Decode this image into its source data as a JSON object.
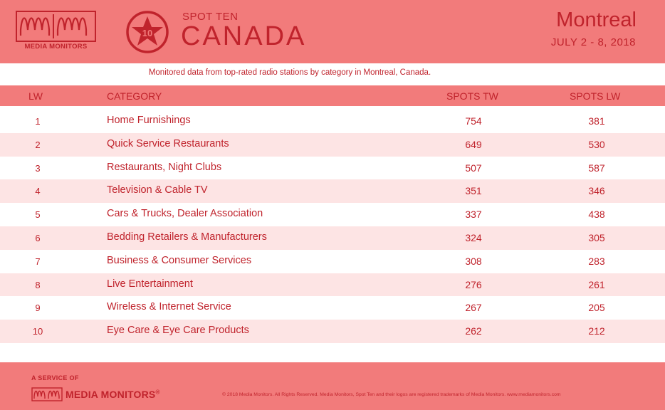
{
  "brand": {
    "logo_text": "MEDIA MONITORS",
    "accent": "#c0232c",
    "header_bg": "#f27b7b",
    "alt_row_bg": "#fde4e4"
  },
  "badge": {
    "number": "10"
  },
  "header": {
    "kicker": "SPOT TEN",
    "title": "CANADA",
    "city": "Montreal",
    "dates": "JULY 2 - 8, 2018"
  },
  "subtitle": "Monitored data from top-rated radio stations by category in Montreal, Canada.",
  "table": {
    "headers": {
      "lw": "LW",
      "category": "CATEGORY",
      "spots_tw": "SPOTS TW",
      "spots_lw": "SPOTS LW"
    },
    "rows": [
      {
        "lw": "1",
        "category": "Home Furnishings",
        "spots_tw": "754",
        "spots_lw": "381"
      },
      {
        "lw": "2",
        "category": "Quick Service Restaurants",
        "spots_tw": "649",
        "spots_lw": "530"
      },
      {
        "lw": "3",
        "category": "Restaurants, Night Clubs",
        "spots_tw": "507",
        "spots_lw": "587"
      },
      {
        "lw": "4",
        "category": "Television & Cable TV",
        "spots_tw": "351",
        "spots_lw": "346"
      },
      {
        "lw": "5",
        "category": "Cars & Trucks, Dealer Association",
        "spots_tw": "337",
        "spots_lw": "438"
      },
      {
        "lw": "6",
        "category": "Bedding Retailers & Manufacturers",
        "spots_tw": "324",
        "spots_lw": "305"
      },
      {
        "lw": "7",
        "category": "Business & Consumer Services",
        "spots_tw": "308",
        "spots_lw": "283"
      },
      {
        "lw": "8",
        "category": "Live Entertainment",
        "spots_tw": "276",
        "spots_lw": "261"
      },
      {
        "lw": "9",
        "category": "Wireless & Internet Service",
        "spots_tw": "267",
        "spots_lw": "205"
      },
      {
        "lw": "10",
        "category": "Eye Care & Eye Care Products",
        "spots_tw": "262",
        "spots_lw": "212"
      }
    ]
  },
  "footer": {
    "service_label": "A SERVICE OF",
    "logo_text": "MEDIA MONITORS",
    "logo_mark": "®",
    "copyright": "© 2018 Media Monitors. All Rights Reserved. Media Monitors, Spot Ten and their logos are registered trademarks of Media Monitors. www.mediamonitors.com"
  }
}
